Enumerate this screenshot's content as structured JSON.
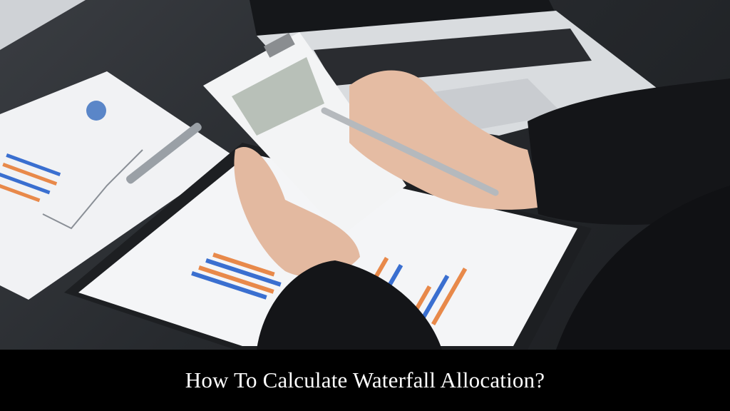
{
  "caption": {
    "title": "How To Calculate Waterfall Allocation?"
  },
  "colors": {
    "banner": "#000000",
    "caption_text": "#ffffff",
    "chart_blue": "#3a6fd0",
    "chart_orange": "#e8894a"
  }
}
